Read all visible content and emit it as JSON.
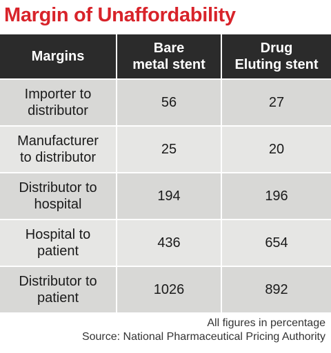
{
  "chart_data": {
    "type": "table",
    "title": "Margin of Unaffordability",
    "columns": [
      "Margins",
      "Bare\nmetal stent",
      "Drug\nEluting stent"
    ],
    "rows": [
      {
        "label": "Importer to\ndistributor",
        "values": [
          "56",
          "27"
        ]
      },
      {
        "label": "Manufacturer\nto distributor",
        "values": [
          "25",
          "20"
        ]
      },
      {
        "label": "Distributor to\nhospital",
        "values": [
          "194",
          "196"
        ]
      },
      {
        "label": "Hospital to\npatient",
        "values": [
          "436",
          "654"
        ]
      },
      {
        "label": "Distributor to\npatient",
        "values": [
          "1026",
          "892"
        ]
      }
    ],
    "note": "All figures in percentage",
    "source": "Source: National Pharmaceutical Pricing Authority"
  }
}
